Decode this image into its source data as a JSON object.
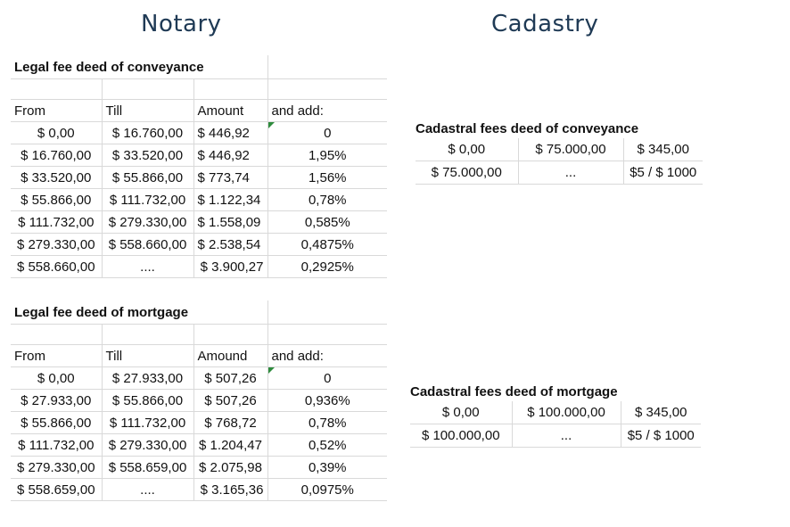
{
  "headings": {
    "notary": "Notary",
    "cadastry": "Cadastry"
  },
  "notary_conveyance": {
    "title": "Legal fee deed of conveyance",
    "columns": [
      "From",
      "Till",
      "Amount",
      "and add:"
    ],
    "rows": [
      [
        "$ 0,00",
        "$ 16.760,00",
        "$ 446,92",
        "0"
      ],
      [
        "$ 16.760,00",
        "$ 33.520,00",
        "$ 446,92",
        "1,95%"
      ],
      [
        "$ 33.520,00",
        "$ 55.866,00",
        "$ 773,74",
        "1,56%"
      ],
      [
        "$ 55.866,00",
        "$ 111.732,00",
        "$ 1.122,34",
        "0,78%"
      ],
      [
        "$ 111.732,00",
        "$ 279.330,00",
        "$ 1.558,09",
        "0,585%"
      ],
      [
        "$ 279.330,00",
        "$ 558.660,00",
        "$ 2.538,54",
        "0,4875%"
      ],
      [
        "$ 558.660,00",
        "....",
        "$ 3.900,27",
        "0,2925%"
      ]
    ]
  },
  "notary_mortgage": {
    "title": "Legal fee deed of mortgage",
    "columns": [
      "From",
      "Till",
      "Amound",
      "and add:"
    ],
    "rows": [
      [
        "$ 0,00",
        "$ 27.933,00",
        "$ 507,26",
        "0"
      ],
      [
        "$ 27.933,00",
        "$ 55.866,00",
        "$ 507,26",
        "0,936%"
      ],
      [
        "$ 55.866,00",
        "$ 111.732,00",
        "$ 768,72",
        "0,78%"
      ],
      [
        "$ 111.732,00",
        "$ 279.330,00",
        "$ 1.204,47",
        "0,52%"
      ],
      [
        "$ 279.330,00",
        "$ 558.659,00",
        "$ 2.075,98",
        "0,39%"
      ],
      [
        "$ 558.659,00",
        "....",
        "$ 3.165,36",
        "0,0975%"
      ]
    ]
  },
  "cadastral_conveyance": {
    "title": "Cadastral fees deed of conveyance",
    "rows": [
      [
        "$ 0,00",
        "$ 75.000,00",
        "$ 345,00"
      ],
      [
        "$ 75.000,00",
        "...",
        "$5 / $ 1000"
      ]
    ]
  },
  "cadastral_mortgage": {
    "title": "Cadastral fees deed of mortgage",
    "rows": [
      [
        "$ 0,00",
        "$ 100.000,00",
        "$ 345,00"
      ],
      [
        "$ 100.000,00",
        "...",
        "$5 / $ 1000"
      ]
    ]
  }
}
